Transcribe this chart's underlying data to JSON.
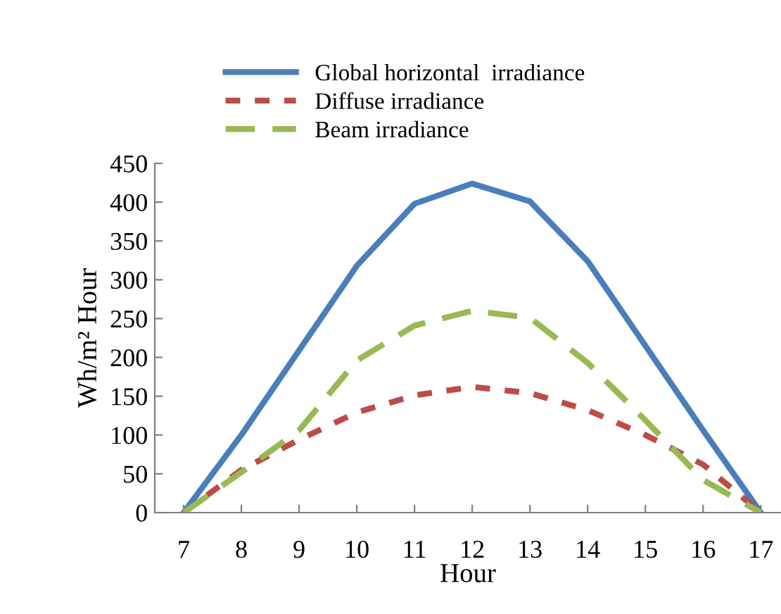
{
  "chart_data": {
    "type": "line",
    "xlabel": "Hour",
    "ylabel": "Wh/m² Hour",
    "x": [
      7,
      8,
      9,
      10,
      11,
      12,
      13,
      14,
      15,
      16,
      17
    ],
    "series": [
      {
        "name": "Global horizontal  irradiance",
        "color": "#4a7ebb",
        "line_style": "solid",
        "values": [
          0,
          100,
          209,
          318,
          398,
          424,
          401,
          324,
          215,
          106,
          0
        ]
      },
      {
        "name": "Diffuse irradiance",
        "color": "#be4b48",
        "line_style": "dotted",
        "values": [
          0,
          55,
          94,
          129,
          151,
          162,
          154,
          132,
          100,
          62,
          0
        ]
      },
      {
        "name": "Beam irradiance",
        "color": "#98b954",
        "line_style": "dashed",
        "values": [
          0,
          52,
          106,
          196,
          241,
          260,
          251,
          193,
          119,
          42,
          0
        ]
      }
    ],
    "xlim": [
      6.5,
      17.35
    ],
    "xticks": [
      7,
      8,
      9,
      10,
      11,
      12,
      13,
      14,
      15,
      16,
      17
    ],
    "ylim": [
      0,
      450
    ],
    "yticks": [
      0,
      50,
      100,
      150,
      200,
      250,
      300,
      350,
      400,
      450
    ],
    "grid": false,
    "legend": "top",
    "marker": "none"
  }
}
